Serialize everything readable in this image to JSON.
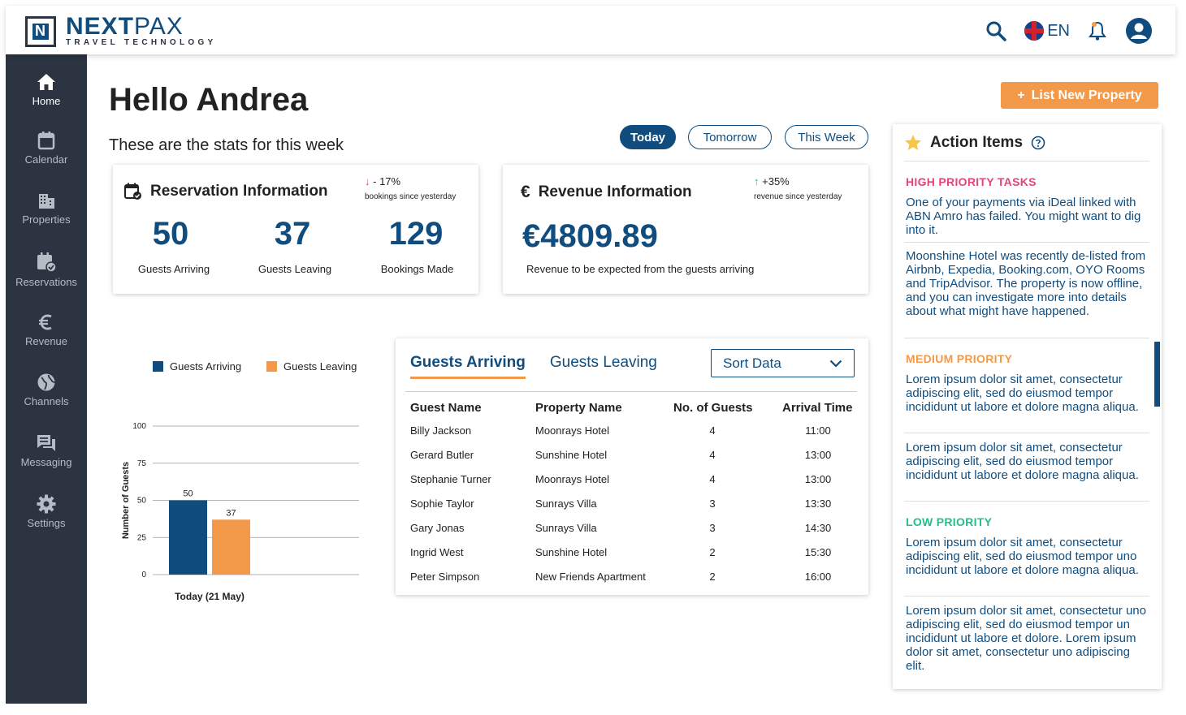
{
  "brand": {
    "name_bold": "NEXT",
    "name_light": "PAX",
    "tagline": "TRAVEL TECHNOLOGY",
    "primary_color": "#104d7e",
    "accent_color": "#f2994a",
    "sidebar_color": "#2b3440"
  },
  "header": {
    "language": "EN",
    "icons": [
      "search-icon",
      "flag-uk-icon",
      "bell-icon",
      "user-avatar-icon"
    ]
  },
  "sidebar": {
    "items": [
      {
        "label": "Home",
        "icon": "home-icon",
        "active": true
      },
      {
        "label": "Calendar",
        "icon": "calendar-icon"
      },
      {
        "label": "Properties",
        "icon": "building-icon"
      },
      {
        "label": "Reservations",
        "icon": "reservation-icon"
      },
      {
        "label": "Revenue",
        "icon": "euro-icon"
      },
      {
        "label": "Channels",
        "icon": "globe-icon"
      },
      {
        "label": "Messaging",
        "icon": "chat-icon"
      },
      {
        "label": "Settings",
        "icon": "gear-icon"
      }
    ]
  },
  "main": {
    "greeting": "Hello Andrea",
    "subtitle": "These are the stats for this week",
    "list_button": "List New Property",
    "ranges": [
      "Today",
      "Tomorrow",
      "This Week"
    ]
  },
  "reservation": {
    "title": "Reservation Information",
    "trend": "- 17%",
    "trend_sub": "bookings since yesterday",
    "stats": [
      {
        "value": "50",
        "label": "Guests Arriving"
      },
      {
        "value": "37",
        "label": "Guests Leaving"
      },
      {
        "value": "129",
        "label": "Bookings Made"
      }
    ]
  },
  "revenue": {
    "title": "Revenue Information",
    "trend": "+35%",
    "trend_sub": "revenue since yesterday",
    "value": "€4809.89",
    "label": "Revenue to be expected from the guests arriving"
  },
  "chart_data": {
    "type": "bar",
    "categories": [
      "Today (21 May)"
    ],
    "series": [
      {
        "name": "Guests Arriving",
        "values": [
          50
        ],
        "color": "#104d7e"
      },
      {
        "name": "Guests Leaving",
        "values": [
          37
        ],
        "color": "#f2994a"
      }
    ],
    "ylabel": "Number of Guests",
    "xlabel": "",
    "ylim": [
      0,
      100
    ],
    "yticks": [
      "100",
      "75",
      "50",
      "25",
      "0"
    ],
    "grid": true,
    "legend": "top"
  },
  "guests": {
    "tabs": [
      "Guests Arriving",
      "Guests Leaving"
    ],
    "sort_label": "Sort Data",
    "columns": [
      "Guest Name",
      "Property Name",
      "No. of Guests",
      "Arrival Time"
    ],
    "rows": [
      [
        "Billy Jackson",
        "Moonrays Hotel",
        "4",
        "11:00"
      ],
      [
        "Gerard Butler",
        "Sunshine Hotel",
        "4",
        "13:00"
      ],
      [
        "Stephanie Turner",
        "Moonrays Hotel",
        "4",
        "13:00"
      ],
      [
        "Sophie Taylor",
        "Sunrays Villa",
        "3",
        "13:30"
      ],
      [
        "Gary Jonas",
        "Sunrays Villa",
        "3",
        "14:30"
      ],
      [
        "Ingrid West",
        "Sunshine Hotel",
        "2",
        "15:30"
      ],
      [
        "Peter Simpson",
        "New Friends Apartment",
        "2",
        "16:00"
      ]
    ]
  },
  "actions": {
    "title": "Action Items",
    "high": {
      "label": "HIGH PRIORITY TASKS",
      "color": "#e0457b",
      "items": [
        "One of your payments via iDeal linked with ABN Amro has failed. You might want to dig into it.",
        "Moonshine Hotel was recently de-listed from Airbnb, Expedia, Booking.com, OYO Rooms and TripAdvisor. The property is now offline, and you can investigate more into details about what might have happened."
      ]
    },
    "medium": {
      "label": "MEDIUM PRIORITY",
      "color": "#f2994a",
      "items": [
        "Lorem ipsum dolor sit amet, consectetur adipiscing elit, sed do eiusmod tempor incididunt ut labore et dolore magna aliqua.",
        "Lorem ipsum dolor sit amet, consectetur adipiscing elit, sed do eiusmod tempor incididunt ut labore et dolore magna aliqua."
      ]
    },
    "low": {
      "label": "LOW PRIORITY",
      "color": "#1fbf8f",
      "items": [
        "Lorem ipsum dolor sit amet, consectetur adipiscing elit, sed do eiusmod tempor uno incididunt ut labore et dolore magna aliqua.",
        "Lorem ipsum dolor sit amet, consectetur uno adipiscing elit, sed do eiusmod tempor un incididunt ut labore et dolore. Lorem ipsum dolor sit amet, consectetur uno adipiscing elit."
      ]
    }
  }
}
